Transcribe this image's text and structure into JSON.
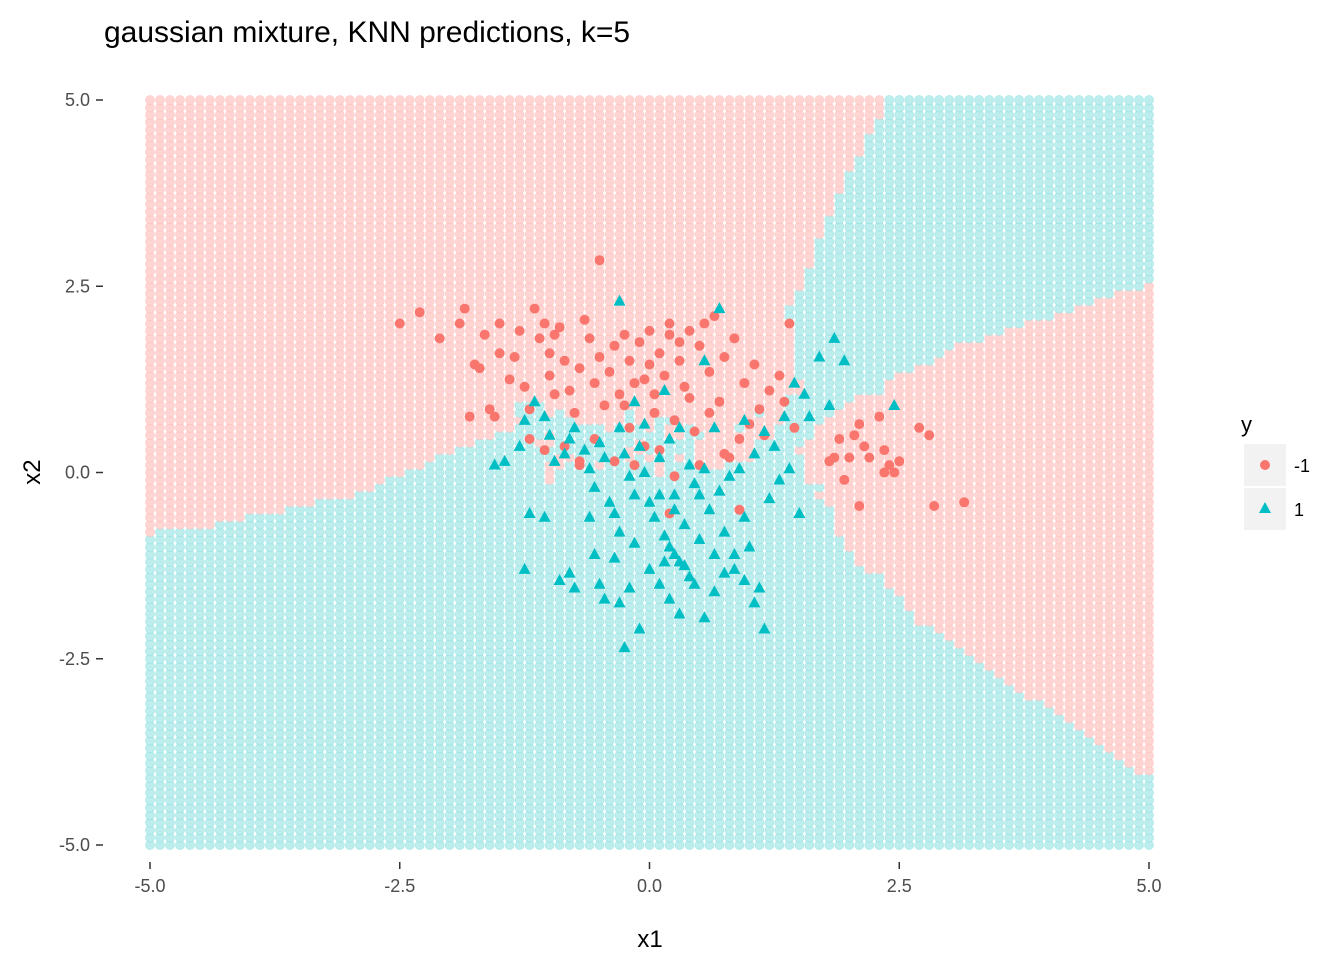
{
  "chart_data": {
    "type": "scatter",
    "title": "gaussian mixture, KNN predictions, k=5",
    "xlabel": "x1",
    "ylabel": "x2",
    "xlim": [
      -5,
      5
    ],
    "ylim": [
      -5,
      5
    ],
    "x_ticks": [
      -5.0,
      -2.5,
      0.0,
      2.5,
      5.0
    ],
    "y_ticks": [
      -5.0,
      -2.5,
      0.0,
      2.5,
      5.0
    ],
    "x_tick_labels": [
      "-5.0",
      "-2.5",
      "0.0",
      "2.5",
      "5.0"
    ],
    "y_tick_labels": [
      "-5.0",
      "-2.5",
      "0.0",
      "2.5",
      "5.0"
    ],
    "grid": false,
    "legend": {
      "title": "y",
      "placement": "right",
      "entries": [
        {
          "label": "-1",
          "shape": "circle",
          "color": "#F8766D"
        },
        {
          "label": "1",
          "shape": "triangle",
          "color": "#00BFC4"
        }
      ]
    },
    "background_grid": {
      "description": "KNN predicted class on a regular grid over [-5,5]x[-5,5]",
      "step": 0.1,
      "class_colors": {
        "-1": "#FFD5D3",
        "1": "#BDEDED"
      },
      "point_colors": {
        "-1": "#F8766D",
        "1": "#00BFC4"
      }
    },
    "series": [
      {
        "name": "-1",
        "shape": "circle",
        "color": "#F8766D",
        "points": [
          [
            -2.5,
            2.0
          ],
          [
            -2.3,
            2.15
          ],
          [
            -2.1,
            1.8
          ],
          [
            -1.9,
            2.0
          ],
          [
            -1.85,
            2.2
          ],
          [
            -1.75,
            1.45
          ],
          [
            -1.7,
            1.4
          ],
          [
            -1.65,
            1.85
          ],
          [
            -1.5,
            2.0
          ],
          [
            -1.5,
            1.6
          ],
          [
            -1.3,
            1.9
          ],
          [
            -1.25,
            1.15
          ],
          [
            -1.2,
            0.85
          ],
          [
            -1.15,
            2.2
          ],
          [
            -1.1,
            1.8
          ],
          [
            -1.05,
            2.0
          ],
          [
            -1.0,
            1.6
          ],
          [
            -1.0,
            1.3
          ],
          [
            -0.95,
            1.05
          ],
          [
            -0.9,
            1.95
          ],
          [
            -0.85,
            1.5
          ],
          [
            -0.8,
            1.1
          ],
          [
            -0.75,
            0.8
          ],
          [
            -0.7,
            1.4
          ],
          [
            -0.65,
            2.05
          ],
          [
            -0.6,
            1.8
          ],
          [
            -0.55,
            1.2
          ],
          [
            -0.5,
            1.55
          ],
          [
            -0.5,
            2.85
          ],
          [
            -0.45,
            0.9
          ],
          [
            -0.4,
            1.35
          ],
          [
            -0.35,
            1.7
          ],
          [
            -0.3,
            1.05
          ],
          [
            -0.25,
            1.85
          ],
          [
            -0.2,
            0.6
          ],
          [
            -0.2,
            1.5
          ],
          [
            -0.15,
            1.2
          ],
          [
            -0.1,
            1.75
          ],
          [
            -0.05,
            0.35
          ],
          [
            0.0,
            1.9
          ],
          [
            0.0,
            1.45
          ],
          [
            0.05,
            0.8
          ],
          [
            0.1,
            1.6
          ],
          [
            0.1,
            0.3
          ],
          [
            0.15,
            1.3
          ],
          [
            0.2,
            1.85
          ],
          [
            0.2,
            2.0
          ],
          [
            0.25,
            0.7
          ],
          [
            0.3,
            1.5
          ],
          [
            0.35,
            1.15
          ],
          [
            0.4,
            1.9
          ],
          [
            0.45,
            0.55
          ],
          [
            0.5,
            1.7
          ],
          [
            0.55,
            2.0
          ],
          [
            0.6,
            1.35
          ],
          [
            0.65,
            2.1
          ],
          [
            0.7,
            0.95
          ],
          [
            0.75,
            1.55
          ],
          [
            0.8,
            0.2
          ],
          [
            0.85,
            1.8
          ],
          [
            0.9,
            0.45
          ],
          [
            0.95,
            1.2
          ],
          [
            1.0,
            0.65
          ],
          [
            1.05,
            1.45
          ],
          [
            1.1,
            0.85
          ],
          [
            1.15,
            0.5
          ],
          [
            1.2,
            1.1
          ],
          [
            1.3,
            1.3
          ],
          [
            1.35,
            0.95
          ],
          [
            1.4,
            2.0
          ],
          [
            1.45,
            0.6
          ],
          [
            -1.8,
            0.75
          ],
          [
            -1.6,
            0.85
          ],
          [
            -1.55,
            0.75
          ],
          [
            -1.2,
            0.45
          ],
          [
            -1.05,
            0.3
          ],
          [
            -0.85,
            0.35
          ],
          [
            -0.7,
            0.1
          ],
          [
            -0.55,
            0.45
          ],
          [
            -0.35,
            0.15
          ],
          [
            -0.15,
            0.1
          ],
          [
            0.25,
            -0.05
          ],
          [
            0.5,
            0.1
          ],
          [
            0.75,
            0.25
          ],
          [
            0.9,
            -0.5
          ],
          [
            0.2,
            -0.55
          ],
          [
            -0.7,
            0.15
          ],
          [
            -1.35,
            1.55
          ],
          [
            -1.4,
            1.25
          ],
          [
            -0.95,
            1.85
          ],
          [
            0.05,
            1.05
          ],
          [
            -0.05,
            1.25
          ],
          [
            0.3,
            1.75
          ],
          [
            0.6,
            0.8
          ],
          [
            0.4,
            1.0
          ],
          [
            -0.25,
            0.9
          ],
          [
            1.85,
            0.2
          ],
          [
            1.9,
            0.45
          ],
          [
            2.0,
            0.2
          ],
          [
            2.05,
            0.5
          ],
          [
            2.1,
            0.65
          ],
          [
            2.15,
            0.35
          ],
          [
            2.2,
            0.2
          ],
          [
            2.3,
            0.75
          ],
          [
            2.35,
            0.3
          ],
          [
            2.4,
            0.1
          ],
          [
            2.45,
            0.0
          ],
          [
            2.5,
            0.15
          ],
          [
            2.7,
            0.6
          ],
          [
            2.8,
            0.5
          ],
          [
            2.85,
            -0.45
          ],
          [
            3.15,
            -0.4
          ],
          [
            2.1,
            -0.45
          ],
          [
            1.95,
            -0.1
          ],
          [
            2.35,
            0.0
          ],
          [
            1.8,
            0.15
          ]
        ]
      },
      {
        "name": "1",
        "shape": "triangle",
        "color": "#00BFC4",
        "points": [
          [
            -1.55,
            0.1
          ],
          [
            -1.45,
            0.15
          ],
          [
            -1.3,
            0.35
          ],
          [
            -1.25,
            0.7
          ],
          [
            -1.15,
            0.95
          ],
          [
            -1.05,
            0.75
          ],
          [
            -1.0,
            0.5
          ],
          [
            -0.95,
            0.15
          ],
          [
            -0.85,
            0.25
          ],
          [
            -0.8,
            0.45
          ],
          [
            -0.75,
            0.6
          ],
          [
            -0.65,
            0.3
          ],
          [
            -0.6,
            0.05
          ],
          [
            -0.55,
            -0.2
          ],
          [
            -0.5,
            0.4
          ],
          [
            -0.45,
            0.2
          ],
          [
            -0.4,
            -0.4
          ],
          [
            -0.35,
            -0.55
          ],
          [
            -0.3,
            0.6
          ],
          [
            -0.25,
            0.25
          ],
          [
            -0.2,
            -0.05
          ],
          [
            -0.15,
            -0.3
          ],
          [
            -0.1,
            0.35
          ],
          [
            -0.05,
            0.0
          ],
          [
            0.0,
            -0.4
          ],
          [
            0.05,
            -0.6
          ],
          [
            0.1,
            0.2
          ],
          [
            0.15,
            -0.85
          ],
          [
            0.2,
            -1.0
          ],
          [
            0.25,
            -0.3
          ],
          [
            0.3,
            -1.2
          ],
          [
            0.35,
            -0.7
          ],
          [
            0.4,
            -1.4
          ],
          [
            0.45,
            -0.15
          ],
          [
            0.5,
            -0.9
          ],
          [
            0.55,
            0.05
          ],
          [
            0.6,
            -0.5
          ],
          [
            0.65,
            -1.1
          ],
          [
            0.7,
            -0.25
          ],
          [
            0.75,
            -0.8
          ],
          [
            0.8,
            -0.05
          ],
          [
            0.85,
            -1.3
          ],
          [
            0.9,
            0.05
          ],
          [
            0.95,
            -0.6
          ],
          [
            1.0,
            -1.0
          ],
          [
            1.05,
            0.25
          ],
          [
            1.1,
            -1.55
          ],
          [
            1.15,
            -2.1
          ],
          [
            1.2,
            -0.35
          ],
          [
            1.25,
            0.35
          ],
          [
            1.3,
            -0.1
          ],
          [
            1.35,
            0.75
          ],
          [
            1.4,
            0.05
          ],
          [
            1.45,
            1.2
          ],
          [
            1.5,
            -0.55
          ],
          [
            1.55,
            1.05
          ],
          [
            1.6,
            0.75
          ],
          [
            1.7,
            1.55
          ],
          [
            1.8,
            0.9
          ],
          [
            1.85,
            1.8
          ],
          [
            1.95,
            1.5
          ],
          [
            2.45,
            0.9
          ],
          [
            -0.6,
            -0.6
          ],
          [
            -0.55,
            -1.1
          ],
          [
            -0.5,
            -1.5
          ],
          [
            -0.45,
            -1.7
          ],
          [
            -0.35,
            -1.15
          ],
          [
            -0.3,
            -1.75
          ],
          [
            -0.25,
            -2.35
          ],
          [
            -0.2,
            -1.55
          ],
          [
            -0.1,
            -2.1
          ],
          [
            0.0,
            -1.3
          ],
          [
            0.1,
            -1.5
          ],
          [
            0.15,
            -1.2
          ],
          [
            0.2,
            -1.7
          ],
          [
            0.25,
            -1.1
          ],
          [
            0.3,
            -1.9
          ],
          [
            0.35,
            -1.25
          ],
          [
            0.45,
            -1.5
          ],
          [
            0.55,
            -1.95
          ],
          [
            0.65,
            -1.6
          ],
          [
            0.75,
            -1.35
          ],
          [
            0.85,
            -1.1
          ],
          [
            0.95,
            -1.45
          ],
          [
            1.05,
            -1.75
          ],
          [
            -0.8,
            -1.35
          ],
          [
            -0.75,
            -1.55
          ],
          [
            -0.9,
            -1.45
          ],
          [
            -1.05,
            -0.6
          ],
          [
            -1.2,
            -0.55
          ],
          [
            -1.25,
            -1.3
          ],
          [
            -0.3,
            2.3
          ],
          [
            0.7,
            2.2
          ],
          [
            0.55,
            1.5
          ],
          [
            0.65,
            0.6
          ],
          [
            0.2,
            0.45
          ],
          [
            -0.05,
            0.65
          ],
          [
            -0.15,
            0.95
          ],
          [
            0.4,
            0.1
          ],
          [
            0.3,
            0.6
          ],
          [
            0.15,
            1.1
          ],
          [
            -0.3,
            -0.8
          ],
          [
            -0.15,
            -0.95
          ],
          [
            0.1,
            -0.3
          ],
          [
            0.25,
            -0.5
          ],
          [
            0.5,
            -0.3
          ],
          [
            1.15,
            0.55
          ],
          [
            0.95,
            0.7
          ]
        ]
      }
    ]
  }
}
